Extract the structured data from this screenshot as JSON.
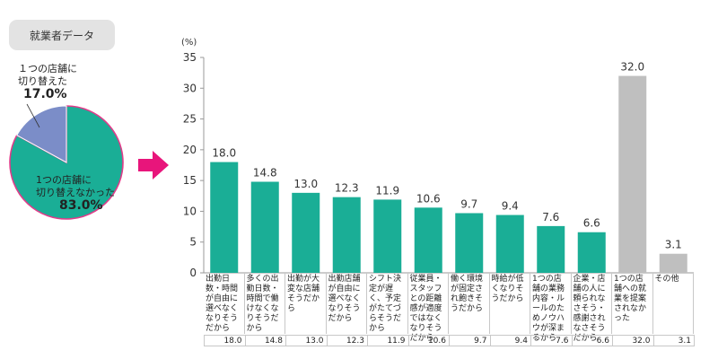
{
  "badge": "就業者データ",
  "pie": {
    "slices": [
      {
        "label": "１つの店舗に切り替えた",
        "line1": "１つの店舗に",
        "line2": "切り替えた",
        "value_label": "17.0%",
        "value": 17.0,
        "color": "#7b8dc8"
      },
      {
        "label": "1つの店舗に切り替えなかった",
        "line1": "1つの店舗に",
        "line2": "切り替えなかった",
        "value_label": "83.0%",
        "value": 83.0,
        "color": "#1aae96"
      }
    ],
    "border_color": "#e03c8a"
  },
  "arrow_color": "#e8157b",
  "chart_data": {
    "type": "bar",
    "ylabel": "(%)",
    "ylim": [
      0,
      35
    ],
    "yticks": [
      0,
      5,
      10,
      15,
      20,
      25,
      30,
      35
    ],
    "grid": false,
    "categories": [
      "出勤日数・時間が自由に選べなくなりそうだから",
      "多くの出勤日数・時間で働けなくなりそうだから",
      "出勤が大変な店舗そうだから",
      "出勤店舗が自由に選べなくなりそうだから",
      "シフト決定が遅く、予定がたてづらそうだから",
      "従業員・スタッフとの距離感が適度ではなくなりそうだから",
      "働く環境が固定され飽きそうだから",
      "時給が低くなりそうだから",
      "1つの店舗の業務内容・ルールのためノウハウが深まるから",
      "企業・店舗の人に頼られなさそう・感謝されなさそうだから",
      "1つの店舗への就業を提案されなかった",
      "その他"
    ],
    "values": [
      18.0,
      14.8,
      13.0,
      12.3,
      11.9,
      10.6,
      9.7,
      9.4,
      7.6,
      6.6,
      32.0,
      3.1
    ],
    "value_labels": [
      "18.0",
      "14.8",
      "13.0",
      "12.3",
      "11.9",
      "10.6",
      "9.7",
      "9.4",
      "7.6",
      "6.6",
      "32.0",
      "3.1"
    ],
    "bar_colors": [
      "#1aae96",
      "#1aae96",
      "#1aae96",
      "#1aae96",
      "#1aae96",
      "#1aae96",
      "#1aae96",
      "#1aae96",
      "#1aae96",
      "#1aae96",
      "#bfbfbf",
      "#bfbfbf"
    ]
  }
}
